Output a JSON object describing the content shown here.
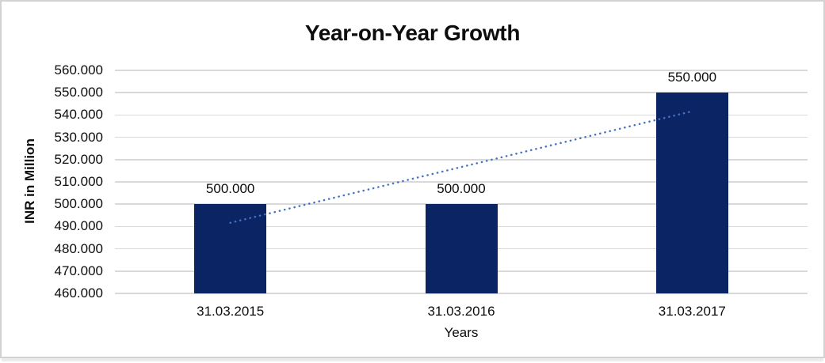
{
  "chart": {
    "title": "Year-on-Year Growth",
    "y_axis_title": "INR in Million",
    "x_axis_title": "Years"
  },
  "chart_data": {
    "type": "bar",
    "title": "Year-on-Year Growth",
    "xlabel": "Years",
    "ylabel": "INR in Million",
    "categories": [
      "31.03.2015",
      "31.03.2016",
      "31.03.2017"
    ],
    "values": [
      500000,
      500000,
      550000
    ],
    "data_labels": [
      "500.000",
      "500.000",
      "550.000"
    ],
    "ylim": [
      460000,
      560000
    ],
    "y_ticks": [
      {
        "value": 560000,
        "label": "560.000"
      },
      {
        "value": 550000,
        "label": "550.000"
      },
      {
        "value": 540000,
        "label": "540.000"
      },
      {
        "value": 530000,
        "label": "530.000"
      },
      {
        "value": 520000,
        "label": "520.000"
      },
      {
        "value": 510000,
        "label": "510.000"
      },
      {
        "value": 500000,
        "label": "500.000"
      },
      {
        "value": 490000,
        "label": "490.000"
      },
      {
        "value": 480000,
        "label": "480.000"
      },
      {
        "value": 470000,
        "label": "470.000"
      },
      {
        "value": 460000,
        "label": "460.000"
      }
    ],
    "grid": "horizontal",
    "legend": "none",
    "trendline": {
      "type": "linear",
      "style": "dotted",
      "start_value": 491667,
      "end_value": 541667
    }
  },
  "colors": {
    "bar": "#0b2463",
    "trendline": "#4472c4",
    "gridline": "#d9d9d9",
    "frame_border": "#d2d2d2",
    "text": "#0d0d0d"
  }
}
